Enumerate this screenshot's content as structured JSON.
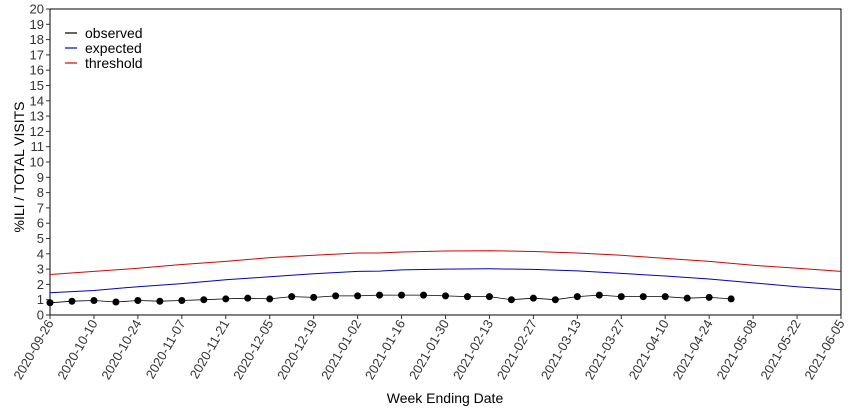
{
  "chart_data": {
    "type": "line",
    "title": "",
    "xlabel": "Week Ending Date",
    "ylabel": "%ILI / TOTAL VISITS",
    "ylim": [
      0,
      20
    ],
    "yticks": [
      0,
      1,
      2,
      3,
      4,
      5,
      6,
      7,
      8,
      9,
      10,
      11,
      12,
      13,
      14,
      15,
      16,
      17,
      18,
      19,
      20
    ],
    "xlim": [
      "2020-09-26",
      "2021-06-05"
    ],
    "xticks": [
      "2020-09-26",
      "2020-10-10",
      "2020-10-24",
      "2020-11-07",
      "2020-11-21",
      "2020-12-05",
      "2020-12-19",
      "2021-01-02",
      "2021-01-16",
      "2021-01-30",
      "2021-02-13",
      "2021-02-27",
      "2021-03-13",
      "2021-03-27",
      "2021-04-10",
      "2021-04-24",
      "2021-05-08",
      "2021-05-22",
      "2021-06-05"
    ],
    "grid": false,
    "legend_position": "top-left",
    "series": [
      {
        "name": "observed",
        "color": "#000000",
        "markers": true,
        "x": [
          "2020-09-26",
          "2020-10-03",
          "2020-10-10",
          "2020-10-17",
          "2020-10-24",
          "2020-10-31",
          "2020-11-07",
          "2020-11-14",
          "2020-11-21",
          "2020-11-28",
          "2020-12-05",
          "2020-12-12",
          "2020-12-19",
          "2020-12-26",
          "2021-01-02",
          "2021-01-09",
          "2021-01-16",
          "2021-01-23",
          "2021-01-30",
          "2021-02-06",
          "2021-02-13",
          "2021-02-20",
          "2021-02-27",
          "2021-03-06",
          "2021-03-13",
          "2021-03-20",
          "2021-03-27",
          "2021-04-03",
          "2021-04-10",
          "2021-04-17",
          "2021-04-24",
          "2021-05-01"
        ],
        "values": [
          0.8,
          0.9,
          0.95,
          0.85,
          0.95,
          0.9,
          0.95,
          1.0,
          1.05,
          1.1,
          1.05,
          1.2,
          1.15,
          1.25,
          1.25,
          1.3,
          1.3,
          1.3,
          1.25,
          1.2,
          1.2,
          1.0,
          1.1,
          1.0,
          1.2,
          1.3,
          1.2,
          1.2,
          1.2,
          1.1,
          1.15,
          1.05
        ]
      },
      {
        "name": "expected",
        "color": "#0000cc",
        "markers": false,
        "x": [
          "2020-09-26",
          "2020-10-10",
          "2020-10-24",
          "2020-11-07",
          "2020-11-21",
          "2020-12-05",
          "2020-12-19",
          "2021-01-02",
          "2021-01-09",
          "2021-01-16",
          "2021-01-30",
          "2021-02-13",
          "2021-02-27",
          "2021-03-13",
          "2021-03-27",
          "2021-04-10",
          "2021-04-24",
          "2021-05-08",
          "2021-05-22",
          "2021-06-05"
        ],
        "values": [
          1.45,
          1.6,
          1.85,
          2.05,
          2.3,
          2.5,
          2.7,
          2.85,
          2.87,
          2.95,
          3.0,
          3.02,
          2.98,
          2.88,
          2.72,
          2.55,
          2.35,
          2.1,
          1.85,
          1.65
        ]
      },
      {
        "name": "threshold",
        "color": "#dd0000",
        "markers": false,
        "x": [
          "2020-09-26",
          "2020-10-10",
          "2020-10-24",
          "2020-11-07",
          "2020-11-21",
          "2020-12-05",
          "2020-12-19",
          "2021-01-02",
          "2021-01-09",
          "2021-01-16",
          "2021-01-30",
          "2021-02-13",
          "2021-02-27",
          "2021-03-13",
          "2021-03-27",
          "2021-04-10",
          "2021-04-24",
          "2021-05-08",
          "2021-05-22",
          "2021-06-05"
        ],
        "values": [
          2.65,
          2.85,
          3.05,
          3.3,
          3.5,
          3.75,
          3.9,
          4.05,
          4.05,
          4.12,
          4.18,
          4.2,
          4.15,
          4.05,
          3.9,
          3.7,
          3.5,
          3.25,
          3.05,
          2.85
        ]
      }
    ]
  }
}
